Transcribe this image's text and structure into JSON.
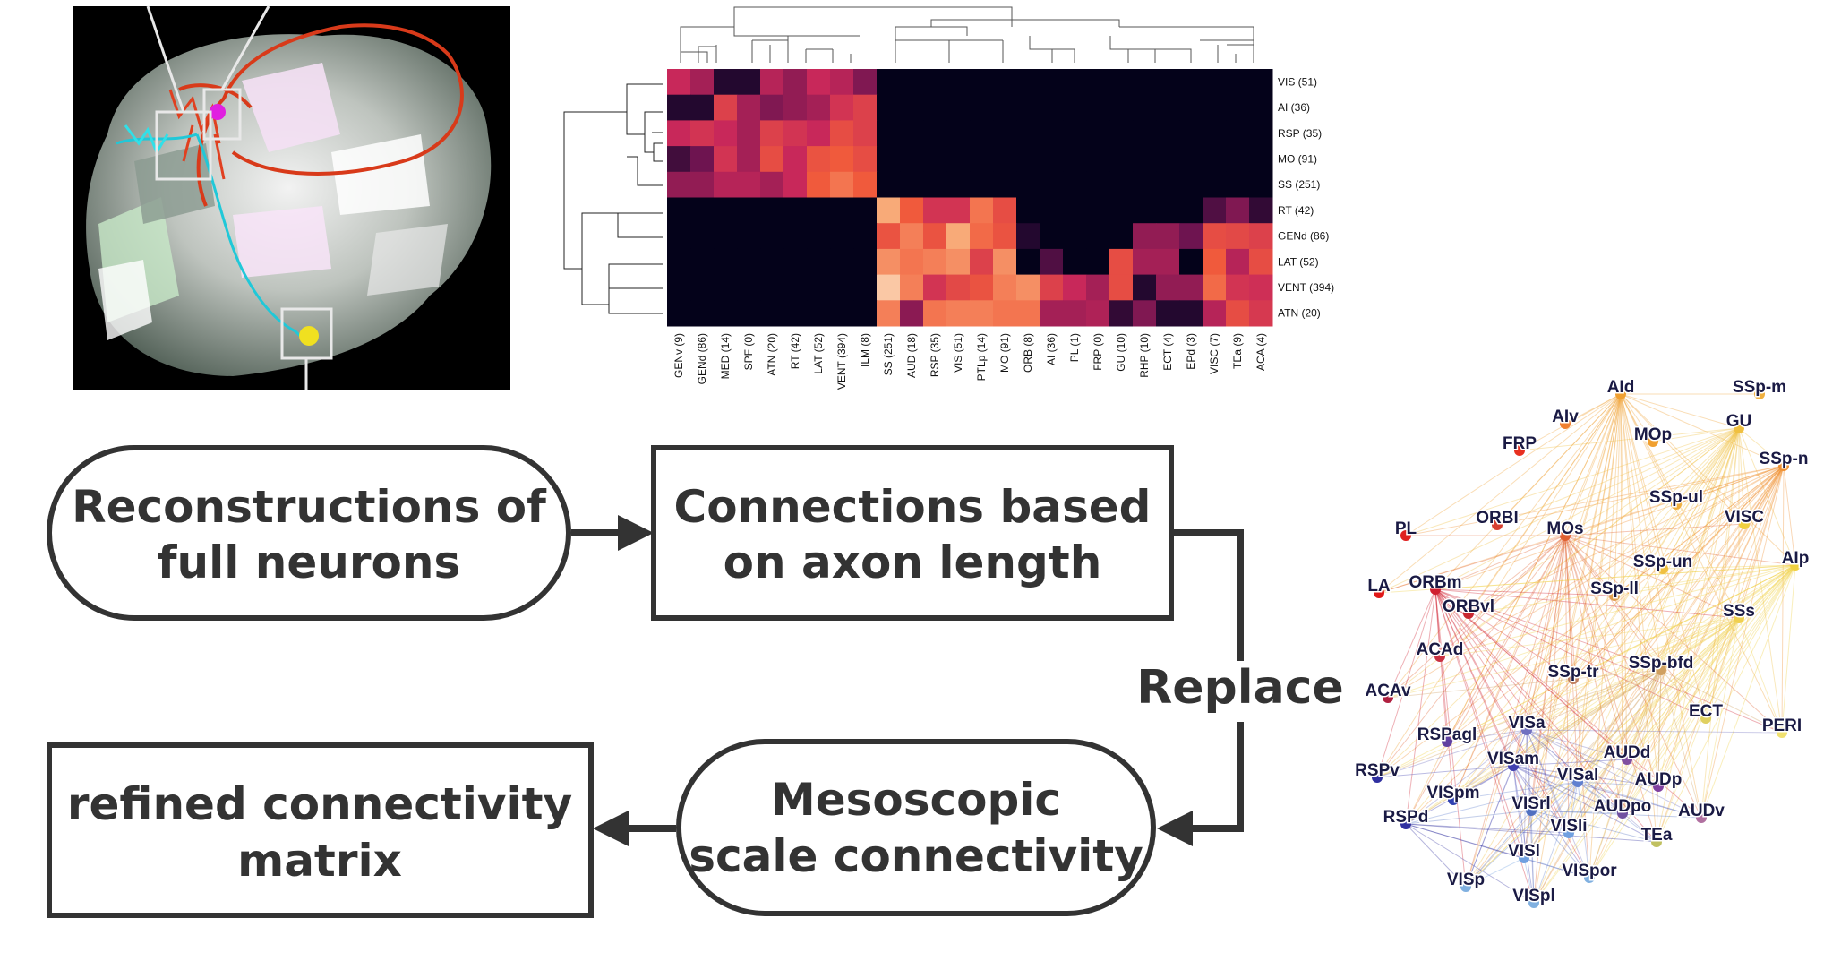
{
  "flowchart": {
    "step1": [
      "Reconstructions of",
      "full neurons"
    ],
    "step2": [
      "Connections based",
      "on axon length"
    ],
    "replace_label": "Replace",
    "step3": [
      "Mesoscopic",
      "scale connectivity"
    ],
    "step4": [
      "refined connectivity",
      "matrix"
    ]
  },
  "chart_data": {
    "type": "heatmap",
    "rows": [
      "VIS (51)",
      "AI (36)",
      "RSP (35)",
      "MO (91)",
      "SS (251)",
      "RT (42)",
      "GENd (86)",
      "LAT (52)",
      "VENT (394)",
      "ATN (20)"
    ],
    "columns": [
      "GENv (9)",
      "GENd (86)",
      "MED (14)",
      "SPF (0)",
      "ATN (20)",
      "RT (42)",
      "LAT (52)",
      "VENT (394)",
      "ILM (8)",
      "SS (251)",
      "AUD (18)",
      "RSP (35)",
      "VIS (51)",
      "PTLp (14)",
      "MO (91)",
      "ORB (8)",
      "AI (36)",
      "PL (1)",
      "FRP (0)",
      "GU (10)",
      "RHP (10)",
      "ECT (4)",
      "EPd (3)",
      "VISC (7)",
      "TEa (9)",
      "ACA (4)"
    ],
    "values": [
      [
        0.55,
        0.45,
        0.05,
        0.05,
        0.5,
        0.4,
        0.55,
        0.5,
        0.35,
        0,
        0,
        0,
        0,
        0,
        0,
        0,
        0,
        0,
        0,
        0,
        0,
        0,
        0,
        0,
        0,
        0
      ],
      [
        0.05,
        0.05,
        0.65,
        0.45,
        0.35,
        0.4,
        0.45,
        0.6,
        0.65,
        0,
        0,
        0,
        0,
        0,
        0,
        0,
        0,
        0,
        0,
        0,
        0,
        0,
        0,
        0,
        0,
        0
      ],
      [
        0.55,
        0.6,
        0.55,
        0.45,
        0.65,
        0.6,
        0.55,
        0.7,
        0.65,
        0,
        0,
        0,
        0,
        0,
        0,
        0,
        0,
        0,
        0,
        0,
        0,
        0,
        0,
        0,
        0,
        0
      ],
      [
        0.15,
        0.3,
        0.6,
        0.45,
        0.7,
        0.55,
        0.72,
        0.75,
        0.7,
        0,
        0,
        0,
        0,
        0,
        0,
        0,
        0,
        0,
        0,
        0,
        0,
        0,
        0,
        0,
        0,
        0
      ],
      [
        0.4,
        0.4,
        0.5,
        0.5,
        0.45,
        0.55,
        0.75,
        0.8,
        0.75,
        0,
        0,
        0,
        0,
        0,
        0,
        0,
        0,
        0,
        0,
        0,
        0,
        0,
        0,
        0,
        0,
        0
      ],
      [
        0,
        0,
        0,
        0,
        0,
        0,
        0,
        0,
        0,
        0.9,
        0.75,
        0.6,
        0.6,
        0.8,
        0.7,
        0,
        0,
        0,
        0,
        0,
        0,
        0,
        0,
        0.2,
        0.35,
        0.1
      ],
      [
        0,
        0,
        0,
        0,
        0,
        0,
        0,
        0,
        0,
        0.72,
        0.82,
        0.72,
        0.9,
        0.78,
        0.72,
        0.05,
        0,
        0,
        0,
        0,
        0.4,
        0.4,
        0.3,
        0.7,
        0.68,
        0.65
      ],
      [
        0,
        0,
        0,
        0,
        0,
        0,
        0,
        0,
        0,
        0.85,
        0.8,
        0.82,
        0.85,
        0.65,
        0.85,
        0,
        0.2,
        0,
        0,
        0.7,
        0.45,
        0.45,
        0,
        0.75,
        0.5,
        0.7
      ],
      [
        0,
        0,
        0,
        0,
        0,
        0,
        0,
        0,
        0,
        0.95,
        0.82,
        0.6,
        0.68,
        0.72,
        0.82,
        0.85,
        0.65,
        0.55,
        0.45,
        0.7,
        0.05,
        0.4,
        0.4,
        0.78,
        0.6,
        0.58
      ],
      [
        0,
        0,
        0,
        0,
        0,
        0,
        0,
        0,
        0,
        0.82,
        0.38,
        0.8,
        0.82,
        0.82,
        0.8,
        0.8,
        0.45,
        0.45,
        0.48,
        0.1,
        0.35,
        0.05,
        0.05,
        0.5,
        0.7,
        0.62
      ]
    ]
  },
  "network": {
    "nodes": [
      {
        "label": "AId",
        "color": "#f0a030"
      },
      {
        "label": "SSp-m",
        "color": "#f0b040"
      },
      {
        "label": "AIv",
        "color": "#f08030"
      },
      {
        "label": "GU",
        "color": "#f0c040"
      },
      {
        "label": "MOp",
        "color": "#f0a030"
      },
      {
        "label": "FRP",
        "color": "#e83020"
      },
      {
        "label": "SSp-n",
        "color": "#f09030"
      },
      {
        "label": "SSp-ul",
        "color": "#f0b040"
      },
      {
        "label": "ORBl",
        "color": "#d84030"
      },
      {
        "label": "MOs",
        "color": "#e06030"
      },
      {
        "label": "VISC",
        "color": "#f0d040"
      },
      {
        "label": "PL",
        "color": "#e02020"
      },
      {
        "label": "AIp",
        "color": "#f0d040"
      },
      {
        "label": "SSp-un",
        "color": "#f0c040"
      },
      {
        "label": "LA",
        "color": "#e01818"
      },
      {
        "label": "ORBm",
        "color": "#d02030"
      },
      {
        "label": "SSp-ll",
        "color": "#e0a050"
      },
      {
        "label": "ORBvl",
        "color": "#c82830"
      },
      {
        "label": "SSs",
        "color": "#f0d050"
      },
      {
        "label": "ACAd",
        "color": "#c83040"
      },
      {
        "label": "SSp-tr",
        "color": "#c08060"
      },
      {
        "label": "SSp-bfd",
        "color": "#d0a060"
      },
      {
        "label": "ACAv",
        "color": "#b02040"
      },
      {
        "label": "ECT",
        "color": "#e0d060"
      },
      {
        "label": "VISa",
        "color": "#7070c0"
      },
      {
        "label": "PERI",
        "color": "#f0e070"
      },
      {
        "label": "RSPagl",
        "color": "#6040a0"
      },
      {
        "label": "VISam",
        "color": "#4040b0"
      },
      {
        "label": "AUDd",
        "color": "#8050a0"
      },
      {
        "label": "RSPv",
        "color": "#3030a0"
      },
      {
        "label": "VISal",
        "color": "#6080d0"
      },
      {
        "label": "AUDp",
        "color": "#8040a0"
      },
      {
        "label": "VISpm",
        "color": "#3040b0"
      },
      {
        "label": "VISrl",
        "color": "#5070c0"
      },
      {
        "label": "AUDpo",
        "color": "#7050a0"
      },
      {
        "label": "AUDv",
        "color": "#b070a0"
      },
      {
        "label": "RSPd",
        "color": "#3030a0"
      },
      {
        "label": "VISli",
        "color": "#70a0e0"
      },
      {
        "label": "TEa",
        "color": "#c0c060"
      },
      {
        "label": "VISl",
        "color": "#70a0e0"
      },
      {
        "label": "VISpor",
        "color": "#80b0e0"
      },
      {
        "label": "VISp",
        "color": "#80b0e0"
      },
      {
        "label": "VISpl",
        "color": "#80b0e0"
      }
    ]
  }
}
